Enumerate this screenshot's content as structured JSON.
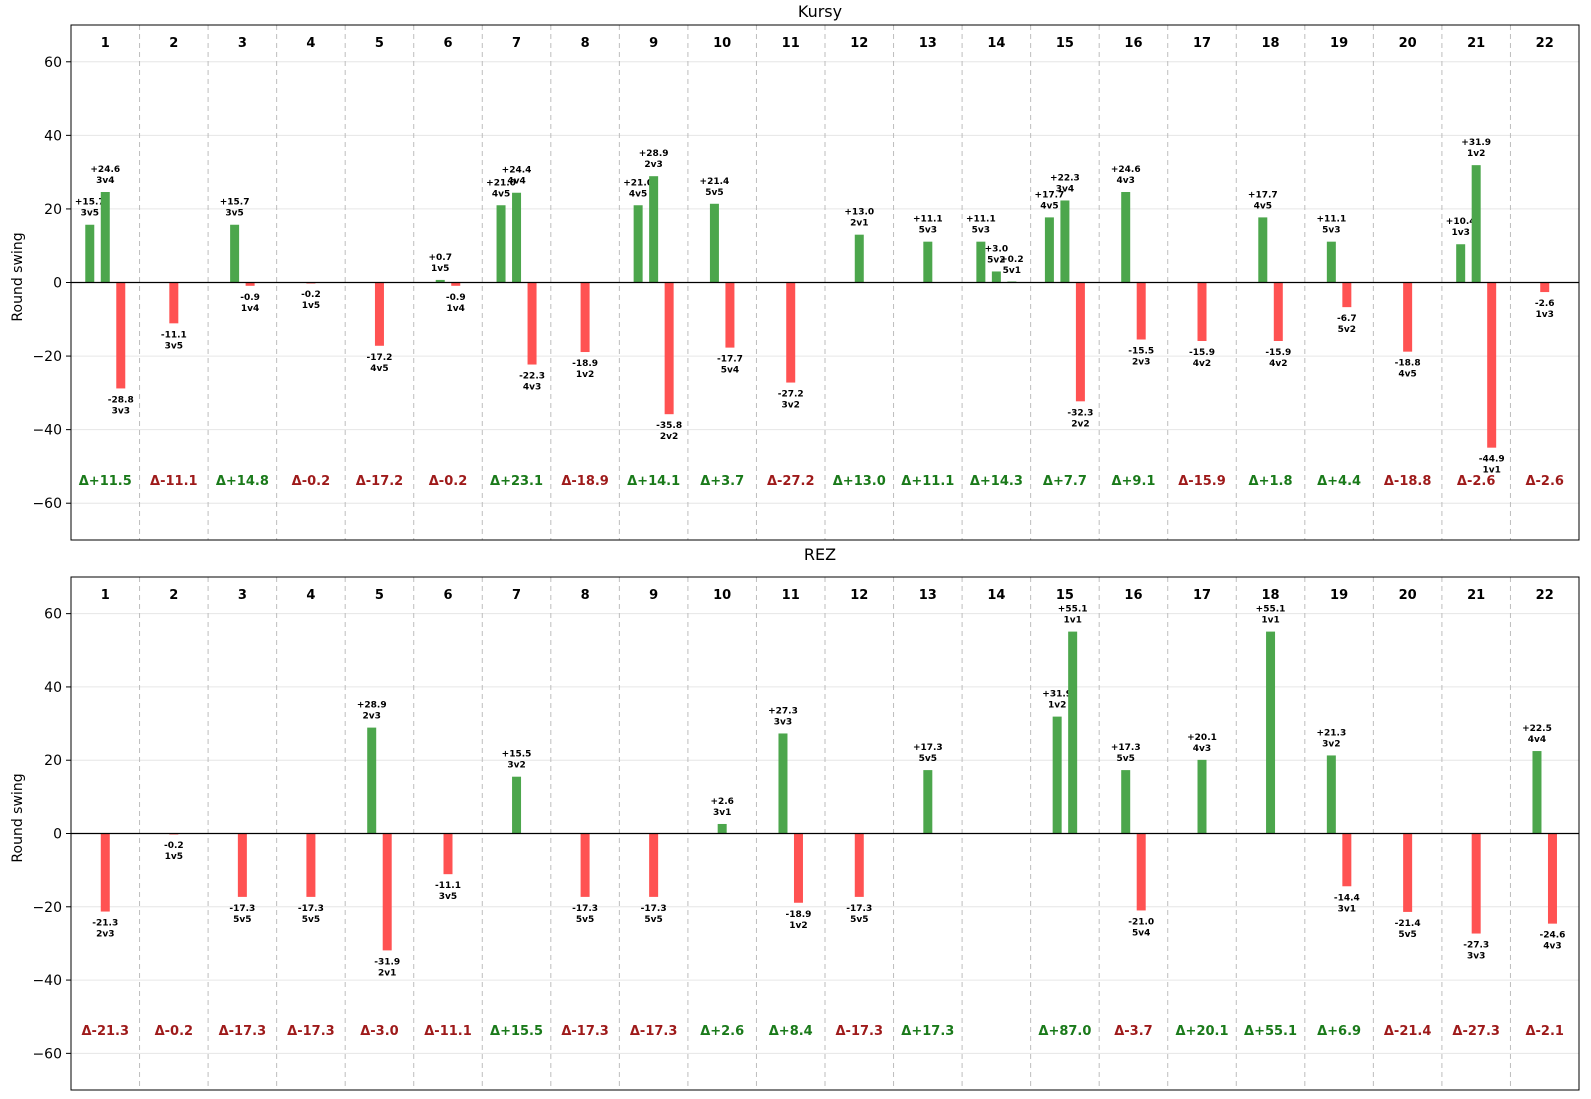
{
  "colors": {
    "positive": "#4CA64C",
    "negative": "#FF5252",
    "delta_positive": "#1A7A1A",
    "delta_negative": "#9E1A1A",
    "grid": "#E6E6E6",
    "divider": "#BDBDBD"
  },
  "chart_data": [
    {
      "type": "bar",
      "title": "Kursy",
      "xlabel": "",
      "ylabel": "Round swing",
      "ylim": [
        -70,
        70
      ],
      "yticks": [
        -60,
        -40,
        -20,
        0,
        20,
        40,
        60
      ],
      "grid": true,
      "rounds": [
        {
          "round": "1",
          "delta": "Δ+11.5",
          "bars": [
            {
              "value": 15.7,
              "label": "3v5"
            },
            {
              "value": 24.6,
              "label": "3v4"
            },
            {
              "value": -28.8,
              "label": "3v3"
            }
          ]
        },
        {
          "round": "2",
          "delta": "Δ-11.1",
          "bars": [
            {
              "value": -11.1,
              "label": "3v5"
            }
          ]
        },
        {
          "round": "3",
          "delta": "Δ+14.8",
          "bars": [
            {
              "value": 15.7,
              "label": "3v5"
            },
            {
              "value": -0.9,
              "label": "1v4"
            }
          ]
        },
        {
          "round": "4",
          "delta": "Δ-0.2",
          "bars": [
            {
              "value": -0.2,
              "label": "1v5"
            }
          ]
        },
        {
          "round": "5",
          "delta": "Δ-17.2",
          "bars": [
            {
              "value": -17.2,
              "label": "4v5"
            }
          ]
        },
        {
          "round": "6",
          "delta": "Δ-0.2",
          "bars": [
            {
              "value": 0.7,
              "label": "1v5"
            },
            {
              "value": -0.9,
              "label": "1v4"
            }
          ]
        },
        {
          "round": "7",
          "delta": "Δ+23.1",
          "bars": [
            {
              "value": 21.0,
              "label": "4v5"
            },
            {
              "value": 24.4,
              "label": "4v4"
            },
            {
              "value": -22.3,
              "label": "4v3"
            }
          ]
        },
        {
          "round": "8",
          "delta": "Δ-18.9",
          "bars": [
            {
              "value": -18.9,
              "label": "1v2"
            }
          ]
        },
        {
          "round": "9",
          "delta": "Δ+14.1",
          "bars": [
            {
              "value": 21.0,
              "label": "4v5"
            },
            {
              "value": 28.9,
              "label": "2v3"
            },
            {
              "value": -35.8,
              "label": "2v2"
            }
          ]
        },
        {
          "round": "10",
          "delta": "Δ+3.7",
          "bars": [
            {
              "value": 21.4,
              "label": "5v5"
            },
            {
              "value": -17.7,
              "label": "5v4"
            }
          ]
        },
        {
          "round": "11",
          "delta": "Δ-27.2",
          "bars": [
            {
              "value": -27.2,
              "label": "3v2"
            }
          ]
        },
        {
          "round": "12",
          "delta": "Δ+13.0",
          "bars": [
            {
              "value": 13.0,
              "label": "2v1"
            }
          ]
        },
        {
          "round": "13",
          "delta": "Δ+11.1",
          "bars": [
            {
              "value": 11.1,
              "label": "5v3"
            }
          ]
        },
        {
          "round": "14",
          "delta": "Δ+14.3",
          "bars": [
            {
              "value": 11.1,
              "label": "5v3"
            },
            {
              "value": 3.0,
              "label": "5v2"
            },
            {
              "value": 0.2,
              "label": "5v1"
            }
          ]
        },
        {
          "round": "15",
          "delta": "Δ+7.7",
          "bars": [
            {
              "value": 17.7,
              "label": "4v5"
            },
            {
              "value": 22.3,
              "label": "3v4"
            },
            {
              "value": -32.3,
              "label": "2v2"
            }
          ]
        },
        {
          "round": "16",
          "delta": "Δ+9.1",
          "bars": [
            {
              "value": 24.6,
              "label": "4v3"
            },
            {
              "value": -15.5,
              "label": "2v3"
            }
          ]
        },
        {
          "round": "17",
          "delta": "Δ-15.9",
          "bars": [
            {
              "value": -15.9,
              "label": "4v2"
            }
          ]
        },
        {
          "round": "18",
          "delta": "Δ+1.8",
          "bars": [
            {
              "value": 17.7,
              "label": "4v5"
            },
            {
              "value": -15.9,
              "label": "4v2"
            }
          ]
        },
        {
          "round": "19",
          "delta": "Δ+4.4",
          "bars": [
            {
              "value": 11.1,
              "label": "5v3"
            },
            {
              "value": -6.7,
              "label": "5v2"
            }
          ]
        },
        {
          "round": "20",
          "delta": "Δ-18.8",
          "bars": [
            {
              "value": -18.8,
              "label": "4v5"
            }
          ]
        },
        {
          "round": "21",
          "delta": "Δ-2.6",
          "bars": [
            {
              "value": 10.4,
              "label": "1v3"
            },
            {
              "value": 31.9,
              "label": "1v2"
            },
            {
              "value": -44.9,
              "label": "1v1"
            }
          ]
        },
        {
          "round": "22",
          "delta": "Δ-2.6",
          "bars": [
            {
              "value": -2.6,
              "label": "1v3"
            }
          ]
        }
      ]
    },
    {
      "type": "bar",
      "title": "REZ",
      "xlabel": "",
      "ylabel": "Round swing",
      "ylim": [
        -70,
        70
      ],
      "yticks": [
        -60,
        -40,
        -20,
        0,
        20,
        40,
        60
      ],
      "grid": true,
      "rounds": [
        {
          "round": "1",
          "delta": "Δ-21.3",
          "bars": [
            {
              "value": -21.3,
              "label": "2v3"
            }
          ]
        },
        {
          "round": "2",
          "delta": "Δ-0.2",
          "bars": [
            {
              "value": -0.2,
              "label": "1v5"
            }
          ]
        },
        {
          "round": "3",
          "delta": "Δ-17.3",
          "bars": [
            {
              "value": -17.3,
              "label": "5v5"
            }
          ]
        },
        {
          "round": "4",
          "delta": "Δ-17.3",
          "bars": [
            {
              "value": -17.3,
              "label": "5v5"
            }
          ]
        },
        {
          "round": "5",
          "delta": "Δ-3.0",
          "bars": [
            {
              "value": 28.9,
              "label": "2v3"
            },
            {
              "value": -31.9,
              "label": "2v1"
            }
          ]
        },
        {
          "round": "6",
          "delta": "Δ-11.1",
          "bars": [
            {
              "value": -11.1,
              "label": "3v5"
            }
          ]
        },
        {
          "round": "7",
          "delta": "Δ+15.5",
          "bars": [
            {
              "value": 15.5,
              "label": "3v2"
            }
          ]
        },
        {
          "round": "8",
          "delta": "Δ-17.3",
          "bars": [
            {
              "value": -17.3,
              "label": "5v5"
            }
          ]
        },
        {
          "round": "9",
          "delta": "Δ-17.3",
          "bars": [
            {
              "value": -17.3,
              "label": "5v5"
            }
          ]
        },
        {
          "round": "10",
          "delta": "Δ+2.6",
          "bars": [
            {
              "value": 2.6,
              "label": "3v1"
            }
          ]
        },
        {
          "round": "11",
          "delta": "Δ+8.4",
          "bars": [
            {
              "value": 27.3,
              "label": "3v3"
            },
            {
              "value": -18.9,
              "label": "1v2"
            }
          ]
        },
        {
          "round": "12",
          "delta": "Δ-17.3",
          "bars": [
            {
              "value": -17.3,
              "label": "5v5"
            }
          ]
        },
        {
          "round": "13",
          "delta": "Δ+17.3",
          "bars": [
            {
              "value": 17.3,
              "label": "5v5"
            }
          ]
        },
        {
          "round": "14",
          "delta": "",
          "bars": []
        },
        {
          "round": "15",
          "delta": "Δ+87.0",
          "bars": [
            {
              "value": 31.9,
              "label": "1v2"
            },
            {
              "value": 55.1,
              "label": "1v1"
            }
          ]
        },
        {
          "round": "16",
          "delta": "Δ-3.7",
          "bars": [
            {
              "value": 17.3,
              "label": "5v5"
            },
            {
              "value": -21.0,
              "label": "5v4"
            }
          ]
        },
        {
          "round": "17",
          "delta": "Δ+20.1",
          "bars": [
            {
              "value": 20.1,
              "label": "4v3"
            }
          ]
        },
        {
          "round": "18",
          "delta": "Δ+55.1",
          "bars": [
            {
              "value": 55.1,
              "label": "1v1"
            }
          ]
        },
        {
          "round": "19",
          "delta": "Δ+6.9",
          "bars": [
            {
              "value": 21.3,
              "label": "3v2"
            },
            {
              "value": -14.4,
              "label": "3v1"
            }
          ]
        },
        {
          "round": "20",
          "delta": "Δ-21.4",
          "bars": [
            {
              "value": -21.4,
              "label": "5v5"
            }
          ]
        },
        {
          "round": "21",
          "delta": "Δ-27.3",
          "bars": [
            {
              "value": -27.3,
              "label": "3v3"
            }
          ]
        },
        {
          "round": "22",
          "delta": "Δ-2.1",
          "bars": [
            {
              "value": 22.5,
              "label": "4v4"
            },
            {
              "value": -24.6,
              "label": "4v3"
            }
          ]
        }
      ]
    }
  ]
}
